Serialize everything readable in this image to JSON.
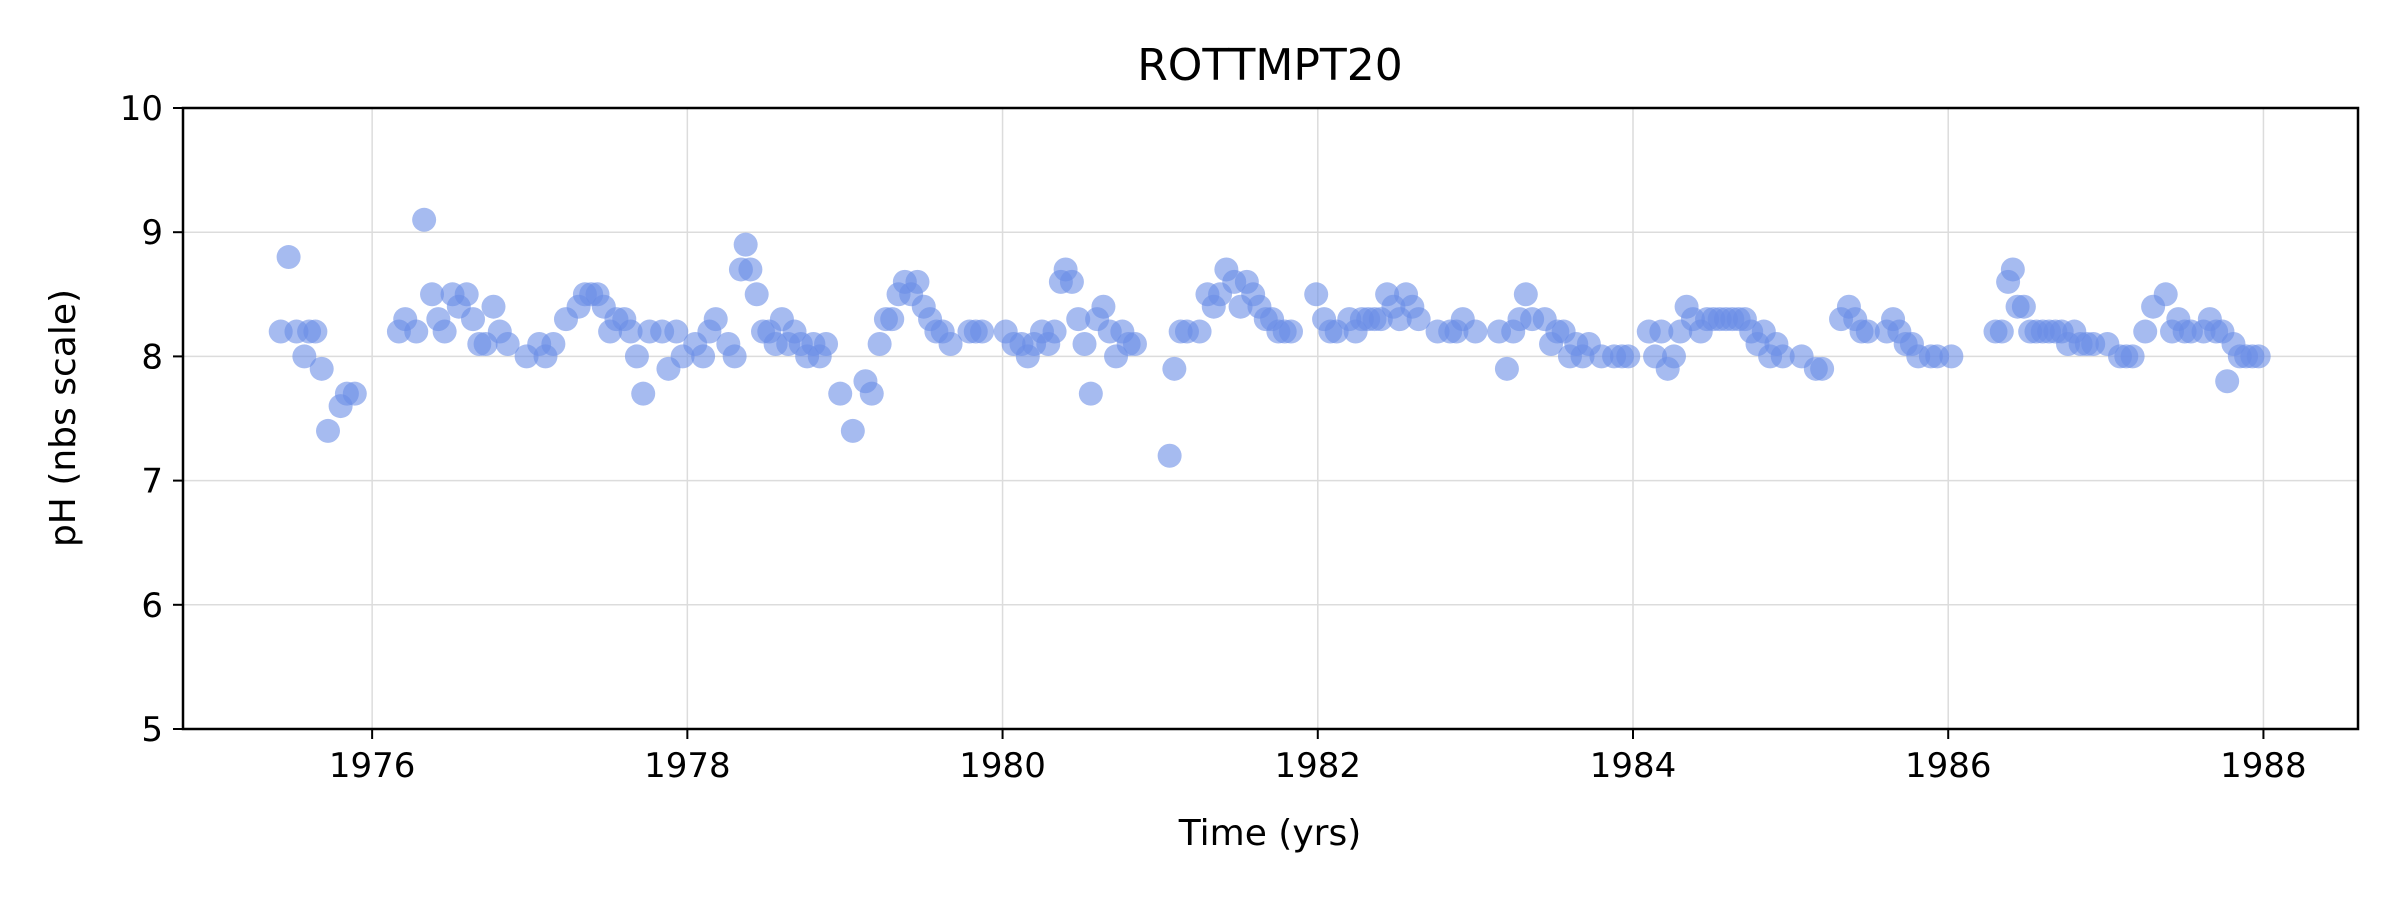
{
  "chart_data": {
    "type": "scatter",
    "title": "ROTTMPT20",
    "xlabel": "Time (yrs)",
    "ylabel": "pH (nbs scale)",
    "xlim": [
      1974.8,
      1988.6
    ],
    "ylim": [
      5,
      10
    ],
    "xticks": [
      1976,
      1978,
      1980,
      1982,
      1984,
      1986,
      1988
    ],
    "yticks": [
      5,
      6,
      7,
      8,
      9,
      10
    ],
    "grid": true,
    "marker_color": "#6a8ee6",
    "series": [
      {
        "x": [
          1975.42,
          1975.47,
          1975.52,
          1975.57,
          1975.6,
          1975.64,
          1975.68,
          1975.72,
          1975.8,
          1975.84,
          1975.89,
          1976.17,
          1976.21,
          1976.28,
          1976.33,
          1976.38,
          1976.42,
          1976.46,
          1976.51,
          1976.55,
          1976.6,
          1976.64,
          1976.68,
          1976.72,
          1976.77,
          1976.81,
          1976.86,
          1976.98,
          1977.06,
          1977.1,
          1977.15,
          1977.23,
          1977.31,
          1977.35,
          1977.39,
          1977.43,
          1977.47,
          1977.51,
          1977.55,
          1977.6,
          1977.64,
          1977.68,
          1977.72,
          1977.76,
          1977.84,
          1977.88,
          1977.93,
          1977.97,
          1978.05,
          1978.1,
          1978.14,
          1978.18,
          1978.26,
          1978.3,
          1978.34,
          1978.37,
          1978.4,
          1978.44,
          1978.48,
          1978.52,
          1978.56,
          1978.6,
          1978.64,
          1978.68,
          1978.72,
          1978.76,
          1978.8,
          1978.84,
          1978.88,
          1978.97,
          1979.05,
          1979.13,
          1979.17,
          1979.22,
          1979.26,
          1979.3,
          1979.34,
          1979.38,
          1979.42,
          1979.46,
          1979.5,
          1979.54,
          1979.58,
          1979.62,
          1979.67,
          1979.79,
          1979.83,
          1979.87,
          1980.02,
          1980.07,
          1980.12,
          1980.16,
          1980.2,
          1980.25,
          1980.29,
          1980.33,
          1980.37,
          1980.4,
          1980.44,
          1980.48,
          1980.52,
          1980.56,
          1980.6,
          1980.64,
          1980.68,
          1980.72,
          1980.76,
          1980.8,
          1980.84,
          1981.06,
          1981.09,
          1981.13,
          1981.17,
          1981.25,
          1981.3,
          1981.34,
          1981.38,
          1981.42,
          1981.47,
          1981.51,
          1981.55,
          1981.59,
          1981.63,
          1981.67,
          1981.71,
          1981.75,
          1981.79,
          1981.83,
          1981.99,
          1982.04,
          1982.08,
          1982.12,
          1982.2,
          1982.24,
          1982.28,
          1982.32,
          1982.36,
          1982.4,
          1982.44,
          1982.48,
          1982.52,
          1982.56,
          1982.6,
          1982.64,
          1982.76,
          1982.84,
          1982.88,
          1982.92,
          1983.0,
          1983.15,
          1983.2,
          1983.24,
          1983.28,
          1983.32,
          1983.36,
          1983.44,
          1983.48,
          1983.52,
          1983.56,
          1983.6,
          1983.64,
          1983.68,
          1983.72,
          1983.8,
          1983.88,
          1983.93,
          1983.97,
          1984.1,
          1984.14,
          1984.18,
          1984.22,
          1984.26,
          1984.3,
          1984.34,
          1984.38,
          1984.43,
          1984.47,
          1984.51,
          1984.55,
          1984.59,
          1984.63,
          1984.67,
          1984.71,
          1984.75,
          1984.79,
          1984.83,
          1984.87,
          1984.91,
          1984.95,
          1985.07,
          1985.16,
          1985.2,
          1985.32,
          1985.37,
          1985.41,
          1985.45,
          1985.49,
          1985.61,
          1985.65,
          1985.69,
          1985.73,
          1985.77,
          1985.81,
          1985.89,
          1985.93,
          1986.02,
          1986.3,
          1986.34,
          1986.38,
          1986.41,
          1986.44,
          1986.48,
          1986.52,
          1986.56,
          1986.6,
          1986.64,
          1986.68,
          1986.72,
          1986.76,
          1986.8,
          1986.84,
          1986.88,
          1986.92,
          1987.01,
          1987.09,
          1987.13,
          1987.17,
          1987.25,
          1987.3,
          1987.38,
          1987.42,
          1987.46,
          1987.5,
          1987.54,
          1987.62,
          1987.66,
          1987.7,
          1987.74,
          1987.77,
          1987.81,
          1987.85,
          1987.89,
          1987.93,
          1987.97
        ],
        "y": [
          8.2,
          8.8,
          8.2,
          8.0,
          8.2,
          8.2,
          7.9,
          7.4,
          7.6,
          7.7,
          7.7,
          8.2,
          8.3,
          8.2,
          9.1,
          8.5,
          8.3,
          8.2,
          8.5,
          8.4,
          8.5,
          8.3,
          8.1,
          8.1,
          8.4,
          8.2,
          8.1,
          8.0,
          8.1,
          8.0,
          8.1,
          8.3,
          8.4,
          8.5,
          8.5,
          8.5,
          8.4,
          8.2,
          8.3,
          8.3,
          8.2,
          8.0,
          7.7,
          8.2,
          8.2,
          7.9,
          8.2,
          8.0,
          8.1,
          8.0,
          8.2,
          8.3,
          8.1,
          8.0,
          8.7,
          8.9,
          8.7,
          8.5,
          8.2,
          8.2,
          8.1,
          8.3,
          8.1,
          8.2,
          8.1,
          8.0,
          8.1,
          8.0,
          8.1,
          7.7,
          7.4,
          7.8,
          7.7,
          8.1,
          8.3,
          8.3,
          8.5,
          8.6,
          8.5,
          8.6,
          8.4,
          8.3,
          8.2,
          8.2,
          8.1,
          8.2,
          8.2,
          8.2,
          8.2,
          8.1,
          8.1,
          8.0,
          8.1,
          8.2,
          8.1,
          8.2,
          8.6,
          8.7,
          8.6,
          8.3,
          8.1,
          7.7,
          8.3,
          8.4,
          8.2,
          8.0,
          8.2,
          8.1,
          8.1,
          7.2,
          7.9,
          8.2,
          8.2,
          8.2,
          8.5,
          8.4,
          8.5,
          8.7,
          8.6,
          8.4,
          8.6,
          8.5,
          8.4,
          8.3,
          8.3,
          8.2,
          8.2,
          8.2,
          8.5,
          8.3,
          8.2,
          8.2,
          8.3,
          8.2,
          8.3,
          8.3,
          8.3,
          8.3,
          8.5,
          8.4,
          8.3,
          8.5,
          8.4,
          8.3,
          8.2,
          8.2,
          8.2,
          8.3,
          8.2,
          8.2,
          7.9,
          8.2,
          8.3,
          8.5,
          8.3,
          8.3,
          8.1,
          8.2,
          8.2,
          8.0,
          8.1,
          8.0,
          8.1,
          8.0,
          8.0,
          8.0,
          8.0,
          8.2,
          8.0,
          8.2,
          7.9,
          8.0,
          8.2,
          8.4,
          8.3,
          8.2,
          8.3,
          8.3,
          8.3,
          8.3,
          8.3,
          8.3,
          8.3,
          8.2,
          8.1,
          8.2,
          8.0,
          8.1,
          8.0,
          8.0,
          7.9,
          7.9,
          8.3,
          8.4,
          8.3,
          8.2,
          8.2,
          8.2,
          8.3,
          8.2,
          8.1,
          8.1,
          8.0,
          8.0,
          8.0,
          8.0,
          8.2,
          8.2,
          8.6,
          8.7,
          8.4,
          8.4,
          8.2,
          8.2,
          8.2,
          8.2,
          8.2,
          8.2,
          8.1,
          8.2,
          8.1,
          8.1,
          8.1,
          8.1,
          8.0,
          8.0,
          8.0,
          8.2,
          8.4,
          8.5,
          8.2,
          8.3,
          8.2,
          8.2,
          8.2,
          8.3,
          8.2,
          8.2,
          7.8,
          8.1,
          8.0,
          8.0,
          8.0,
          8.0
        ]
      }
    ]
  }
}
